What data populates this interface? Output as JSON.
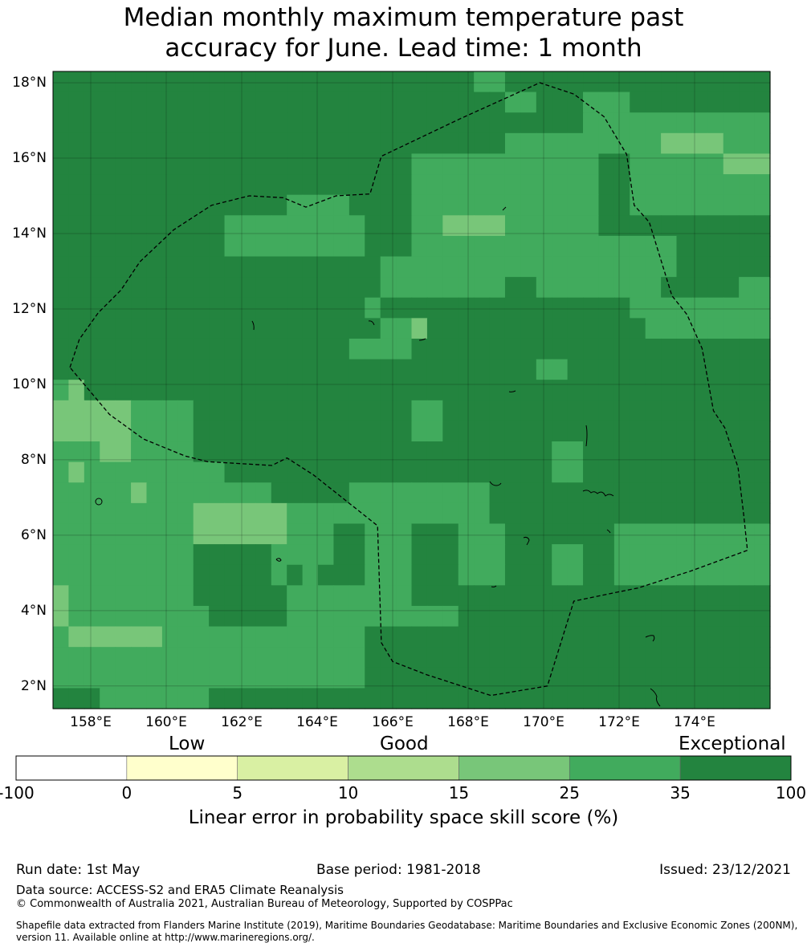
{
  "title_line1": "Median monthly maximum temperature past",
  "title_line2": "accuracy for June. Lead time: 1 month",
  "map": {
    "lon_range": [
      157.0,
      176.0
    ],
    "lat_range": [
      1.4,
      18.3
    ],
    "lon_ticks": [
      "158°E",
      "160°E",
      "162°E",
      "164°E",
      "166°E",
      "168°E",
      "170°E",
      "172°E",
      "174°E"
    ],
    "lat_ticks": [
      "18°N",
      "16°N",
      "14°N",
      "12°N",
      "10°N",
      "8°N",
      "6°N",
      "4°N",
      "2°N"
    ],
    "grid": true,
    "cell_colors": {
      "A": "#23843f",
      "B": "#41ab5d",
      "C": "#78c679"
    },
    "grid_cells": [
      "AAAAAAAAAAAAAAAAAAAAAAAAAAABBAAAAAAAAAAAAAAAAA",
      "AAAAAAAAAAAAAAAAAAAAAAAAAAAAAAAAAAAAAAAAAAAAAA",
      "AAAAAAAAAAAAAAAAAAAAAAAAAAAAAAAAAAAAAAAAAAAAAA",
      "AAAAAAAAAAAAAAAAAAAAAAAAAAAAAAAAAAAAAAAAAAAAAA",
      "AAAAAAAAAAAAAAAAAAAAAAAAAAAAAAAAAAAAAAAAAAAAAA",
      "AAAAAAAAAAAAAAAAAAAAAAAAAAAAAAAAAAAAAAAAAAAAAA",
      "AAAAAAAAAAAAAAAAAAAAAAAAAAAAAAAAAAAAAAAAAAAAAA",
      "AAAAAAAAAAAAAAAAAAAAAAAAAAAAAAAAAAAAAAAAAAAAAA",
      "AAAAAAAAAAAAAAAAAAAAAAAAAAAAAAAAAAAAAAAAAAAAAA",
      "AAAAAAAAAAAAAAAAAAAAAAAAAAAAAAAAAAAAAAAAAAAAAA",
      "AAAAAAAAAAAAAAAAAAAAAAAAAAAAAAAAAAAAAAAAAAAAAA",
      "AAAAAAAAAAAAAAAAAAAAAAAAAAAAAAAAAAAAAAAAAAAAAA",
      "AAAAAAAAAAAAAAAAAAAAAAAAAAAAAAAAAAAAAAAAAAAAAA",
      "AAAAAAAAAAAAAAAAAAAAAAAAAAAAAAAAAAAAAAAAAAAAAA",
      "AAAAAAAAAAAAAAAAAAAAAAAAAAAAAAAAAAAAAAAAAAAAAA",
      "AAAAAAAAAAAAAAAAAAAAAAAAAAAAAAAAAAAAAAAAAAAAAA",
      "AAAAAAAAAAAAAAAAAAAAAAAAAAAAAAAAAAAAAAAAAAAAAA",
      "AAAAAAAAAAAAAAAAAAAAAAAAAAAAAAAAAAAAAAAAAAAAAA",
      "AAAAAAAAAAAAAAAAAAAAAAAAAAAAAAAAAAAAAAAAAAAAAA",
      "AAAAAAAAAAAAAAAAAAAAAAAAAAAAAAAAAAAAAAAAAAAAAA",
      "AAAAAAAAAAAAAAAAAAAAAAAAAAAAAAAAAAAAAAAAAAAAAA",
      "AAAAAAAAAAAAAAAAAAAAAAAAAAAAAAAAAAAAAAAAAAAAAA",
      "AAAAAAAAAAAAAAAAAAAAAAAAAAAAAAAAAAAAAAAAAAAAAA",
      "AAAAAAAAAAAAAAAAAAAAAAAAAAAAAAAAAAAAAAAAAAAAAA",
      "AAAAAAAAAAAAAAAAAAAAAAAAAAAAAAAAAAAAAAAAAAAAAA",
      "AAAAAAAAAAAAAAAAAAAAAAAAAAAAAAAAAAAAAAAAAAAAAA",
      "AAAAAAAAAAAAAAAAAAAAAAAAAAAAAAAAAAAAAAAAAAAAAA",
      "AAAAAAAAAAAAAAAAAAAAAAAAAAAAAAAAAAAAAAAAAAAAAA",
      "AAAAAAAAAAAAAAAAAAAAAAAAAAAAAAAAAAAAAAAAAAAAAA",
      "AAAAAAAAAAAAAAAAAAAAAAAAAAAAAAAAAAAAAAAAAAAAAA",
      "AAAAAAAAAAAAAAAAAAAAAAAAAAAAAAAAAAAAAAAAAAAAAA"
    ],
    "boundary": [
      [
        157.45,
        10.45
      ],
      [
        157.7,
        11.2
      ],
      [
        158.2,
        11.9
      ],
      [
        158.8,
        12.5
      ],
      [
        159.3,
        13.25
      ],
      [
        160.2,
        14.1
      ],
      [
        161.2,
        14.75
      ],
      [
        162.2,
        15.0
      ],
      [
        163.1,
        14.95
      ],
      [
        163.7,
        14.7
      ],
      [
        164.5,
        15.0
      ],
      [
        165.4,
        15.05
      ],
      [
        165.7,
        16.05
      ],
      [
        167.8,
        17.05
      ],
      [
        169.9,
        18.0
      ],
      [
        170.8,
        17.7
      ],
      [
        171.6,
        17.1
      ],
      [
        172.2,
        16.1
      ],
      [
        172.4,
        14.75
      ],
      [
        172.8,
        14.3
      ],
      [
        173.4,
        12.35
      ],
      [
        173.8,
        11.85
      ],
      [
        174.2,
        10.95
      ],
      [
        174.5,
        9.3
      ],
      [
        174.8,
        8.85
      ],
      [
        175.15,
        7.8
      ],
      [
        175.3,
        6.55
      ],
      [
        175.4,
        5.6
      ],
      [
        173.9,
        5.05
      ],
      [
        172.5,
        4.6
      ],
      [
        172.0,
        4.5
      ],
      [
        170.8,
        4.25
      ],
      [
        170.1,
        2.0
      ],
      [
        168.6,
        1.75
      ],
      [
        166.9,
        2.3
      ],
      [
        166.0,
        2.65
      ],
      [
        165.7,
        3.15
      ],
      [
        165.6,
        6.25
      ],
      [
        163.9,
        7.6
      ],
      [
        163.2,
        8.05
      ],
      [
        162.8,
        7.85
      ],
      [
        161.1,
        7.95
      ],
      [
        160.5,
        8.1
      ],
      [
        159.4,
        8.55
      ],
      [
        158.5,
        9.2
      ],
      [
        157.45,
        10.45
      ]
    ]
  },
  "colorbar": {
    "level_labels": [
      "Low",
      "Good",
      "Exceptional"
    ],
    "tick_labels": [
      "-100",
      "0",
      "5",
      "10",
      "15",
      "25",
      "35",
      "100"
    ],
    "colors": [
      "#ffffff",
      "#ffffcc",
      "#d9f0a3",
      "#addd8e",
      "#78c679",
      "#41ab5d",
      "#23843f"
    ],
    "caption": "Linear error in probability space skill score (%)"
  },
  "footer": {
    "run_date": "Run date: 1st May",
    "base_period": "Base period: 1981-2018",
    "issued": "Issued: 23/12/2021",
    "data_source": "Data source: ACCESS-S2 and ERA5 Climate Reanalysis",
    "copyright": "© Commonwealth of Australia 2021, Australian Bureau of Meteorology, Supported by COSPPac",
    "shapefile_line1": "Shapefile data extracted from Flanders Marine Institute (2019), Maritime Boundaries Geodatabase: Maritime Boundaries and Exclusive Economic Zones (200NM),",
    "shapefile_line2": "version 11. Available online at http://www.marineregions.org/."
  }
}
